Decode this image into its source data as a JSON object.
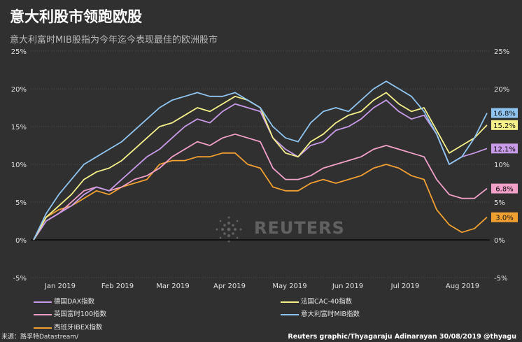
{
  "title": "意大利股市领跑欧股",
  "subtitle": "意大利富时MIB股指为今年迄今表现最佳的欧洲股市",
  "footer": {
    "source": "来源：路孚特Datastream/",
    "credit": "Reuters graphic/Thyagaraju Adinarayan 30/08/2019 @thyagu"
  },
  "watermark": "REUTERS",
  "colors": {
    "background": "#303030",
    "dax": "#c79be8",
    "cac": "#f4f08a",
    "ftse": "#f2a0c8",
    "mib": "#8fc4f0",
    "ibex": "#f0a030"
  },
  "chart_data": {
    "type": "line",
    "title": "意大利股市领跑欧股",
    "subtitle": "意大利富时MIB股指为今年迄今表现最佳的欧洲股市",
    "x_unit": "week index (weekly, 2019-01-01 to 2019-08-30)",
    "months": [
      "Jan 2019",
      "Feb 2019",
      "Mar 2019",
      "Apr 2019",
      "May 2019",
      "Jun 2019",
      "Jul 2019",
      "Aug 2019"
    ],
    "ylim": [
      -5,
      25
    ],
    "yticks": [
      "25%",
      "20%",
      "15%",
      "10%",
      "5%",
      "0%",
      "-5%"
    ],
    "grid": true,
    "legend_position": "bottom",
    "series": [
      {
        "name": "德国DAX指数",
        "key": "dax",
        "end_label": "12.1%",
        "values": [
          0,
          2.5,
          3.5,
          4.5,
          6,
          7,
          6.5,
          8,
          9.5,
          11,
          12,
          13.5,
          15,
          16,
          15.5,
          17,
          18,
          17.5,
          17,
          13.5,
          12,
          11,
          12.5,
          13,
          14.5,
          15,
          16,
          17.5,
          18.5,
          17,
          16,
          16.5,
          14,
          10,
          11,
          11.5,
          12.1
        ]
      },
      {
        "name": "法国CAC-40指数",
        "key": "cac",
        "end_label": "15.2%",
        "values": [
          0,
          3,
          4.5,
          6,
          8,
          9,
          9.5,
          10.5,
          12,
          13.5,
          15,
          15.5,
          16.5,
          17.5,
          17,
          18,
          19,
          18.5,
          17.5,
          13.5,
          11.5,
          11,
          13,
          14,
          15.5,
          16.5,
          17,
          18.5,
          19.5,
          18,
          17,
          17.5,
          14.5,
          11.5,
          12.5,
          13.5,
          15.2
        ]
      },
      {
        "name": "英国富时100指数",
        "key": "ftse",
        "end_label": "6.8%",
        "values": [
          0,
          2.5,
          3.5,
          5,
          6.5,
          7,
          6.5,
          7,
          8,
          8.5,
          9.5,
          11,
          12,
          13,
          12.5,
          13.5,
          14,
          13.5,
          13,
          9.5,
          8,
          8,
          8.5,
          9.5,
          10,
          10.5,
          11,
          12,
          12.5,
          12,
          11.5,
          11,
          8,
          6,
          5.5,
          5.5,
          6.8
        ]
      },
      {
        "name": "意大利富时MIB指数",
        "key": "mib",
        "end_label": "16.8%",
        "values": [
          0,
          3.5,
          6,
          8,
          10,
          11,
          12,
          13,
          14.5,
          16,
          17.5,
          18.5,
          19,
          19.5,
          19,
          19,
          19.5,
          18.5,
          17.5,
          15,
          13.5,
          13,
          15.5,
          17,
          17.5,
          17,
          18.5,
          20,
          21,
          20,
          19,
          17,
          14,
          10,
          11,
          13.5,
          16.8
        ]
      },
      {
        "name": "西班牙IBEX指数",
        "key": "ibex",
        "end_label": "3.0%",
        "values": [
          0,
          3,
          4,
          4.5,
          5.5,
          6.5,
          6,
          7,
          7.5,
          8,
          10,
          10.5,
          10.5,
          11,
          11,
          11.5,
          11.5,
          10,
          9.5,
          7,
          6.5,
          6.5,
          7.5,
          8,
          7.5,
          8,
          8.5,
          9.5,
          10,
          9.5,
          8.5,
          8,
          4,
          2,
          1,
          1.5,
          3.0
        ]
      }
    ]
  }
}
